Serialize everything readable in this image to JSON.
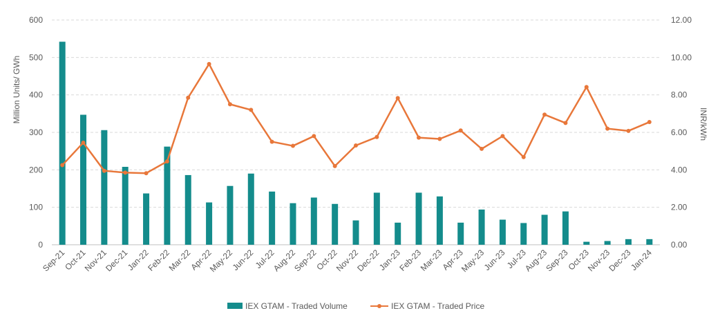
{
  "chart_data": {
    "type": "bar+line",
    "categories": [
      "Sep-21",
      "Oct-21",
      "Nov-21",
      "Dec-21",
      "Jan-22",
      "Feb-22",
      "Mar-22",
      "Apr-22",
      "May-22",
      "Jun-22",
      "Jul-22",
      "Aug-22",
      "Sep-22",
      "Oct-22",
      "Nov-22",
      "Dec-22",
      "Jan-23",
      "Feb-23",
      "Mar-23",
      "Apr-23",
      "May-23",
      "Jun-23",
      "Jul-23",
      "Aug-23",
      "Sep-23",
      "Oct-23",
      "Nov-23",
      "Dec-23",
      "Jan-24"
    ],
    "series": [
      {
        "name": "IEX GTAM - Traded Volume",
        "type": "bar",
        "axis": "left",
        "color": "#148c8c",
        "values": [
          542,
          347,
          306,
          208,
          137,
          262,
          186,
          113,
          157,
          190,
          142,
          111,
          126,
          109,
          65,
          139,
          59,
          139,
          129,
          59,
          94,
          67,
          58,
          80,
          89,
          8,
          10,
          15,
          15
        ]
      },
      {
        "name": "IEX GTAM - Traded Price",
        "type": "line",
        "axis": "right",
        "color": "#e8773a",
        "values": [
          4.25,
          5.45,
          3.95,
          3.85,
          3.82,
          4.45,
          7.85,
          9.65,
          7.5,
          7.2,
          5.5,
          5.28,
          5.8,
          4.2,
          5.3,
          5.75,
          7.83,
          5.72,
          5.65,
          6.1,
          5.12,
          5.8,
          4.68,
          6.95,
          6.5,
          8.42,
          6.2,
          6.08,
          6.55
        ]
      }
    ],
    "ylabel_left": "Million Units/ GWh",
    "ylabel_right": "INR/kWh",
    "ylim_left": [
      0,
      600
    ],
    "ylim_right": [
      0,
      12
    ],
    "yticks_left": [
      "0",
      "100",
      "200",
      "300",
      "400",
      "500",
      "600"
    ],
    "yticks_right": [
      "0.00",
      "2.00",
      "4.00",
      "6.00",
      "8.00",
      "10.00",
      "12.00"
    ],
    "grid": "horizontal dashed",
    "legend_position": "bottom-center"
  }
}
